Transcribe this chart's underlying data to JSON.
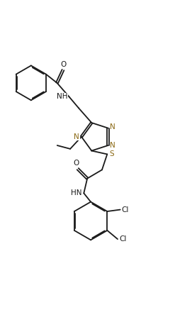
{
  "figsize": [
    2.47,
    4.54
  ],
  "dpi": 100,
  "bg_color": "#ffffff",
  "line_color": "#1a1a1a",
  "n_color": "#8B6914",
  "s_color": "#8B6914",
  "cl_color": "#1a1a1a",
  "line_width": 1.3,
  "font_size": 7.5,
  "xlim": [
    0,
    10
  ],
  "ylim": [
    0,
    18
  ]
}
